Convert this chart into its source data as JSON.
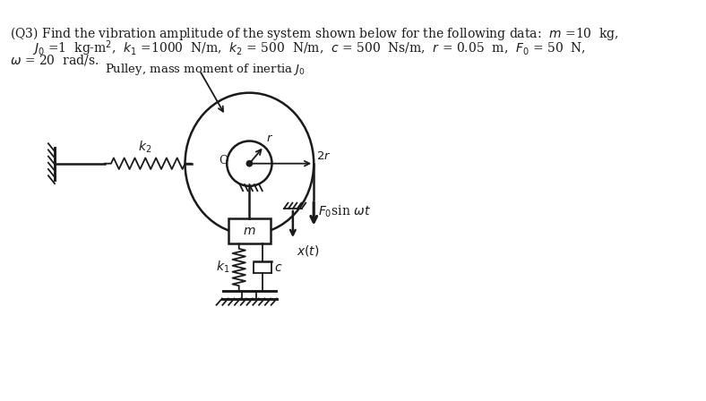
{
  "title_line1": "(Q3) Find the vibration amplitude of the system shown below for the following data:  $m$ =10  kg,",
  "title_line2": "$J_0$ =1  kg-m$^2$,  $k_1$ =1000  N/m,  $k_2$ = 500  N/m,  $c$ = 500  Ns/m,  $r$ = 0.05  m,  $F_0$ = 50  N,",
  "title_line3": "$\\omega$ = 20  rad/s.",
  "pulley_label": "Pulley, mass moment of inertia $J_0$",
  "k2_label": "$k_2$",
  "r_label": "$r$",
  "two_r_label": "$2r$",
  "F0_label": "$F_0$sin $\\omega t$",
  "m_label": "$m$",
  "k1_label": "$k_1$",
  "c_label": "$c$",
  "x_label": "$x(t)$",
  "O_label": "O",
  "bg_color": "#ffffff",
  "line_color": "#1a1a1a"
}
